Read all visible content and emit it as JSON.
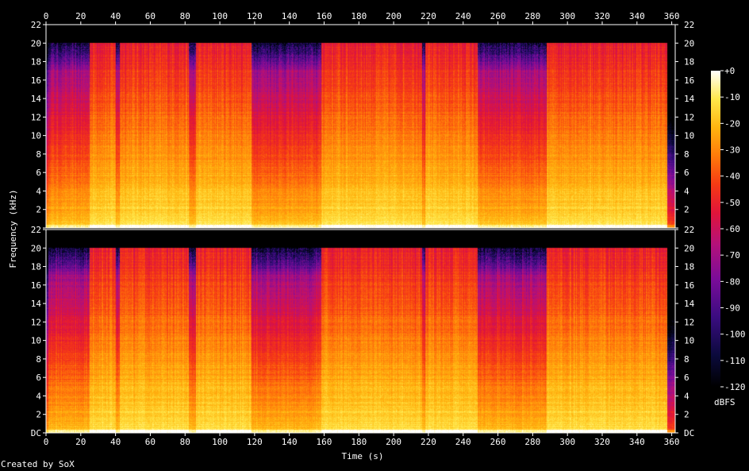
{
  "chart_data": {
    "type": "heatmap",
    "subtype": "spectrogram",
    "channels": 2,
    "xlabel": "Time (s)",
    "ylabel": "Frequency (kHz)",
    "x_ticks": [
      0,
      20,
      40,
      60,
      80,
      100,
      120,
      140,
      160,
      180,
      200,
      220,
      240,
      260,
      280,
      300,
      320,
      340,
      360
    ],
    "xlim": [
      0,
      362
    ],
    "y_ticks": [
      0,
      2,
      4,
      6,
      8,
      10,
      12,
      14,
      16,
      18,
      20,
      22
    ],
    "y_tick_labels_top_channel": [
      "",
      "2",
      "4",
      "6",
      "8",
      "10",
      "12",
      "14",
      "16",
      "18",
      "20",
      "22"
    ],
    "y_tick_labels_bottom_channel": [
      "DC",
      "2",
      "4",
      "6",
      "8",
      "10",
      "12",
      "14",
      "16",
      "18",
      "20",
      "22"
    ],
    "ylim_khz": [
      0,
      22
    ],
    "content_cutoff_khz": 20,
    "loud_segments_s": [
      [
        25,
        40
      ],
      [
        42,
        82
      ],
      [
        86,
        118
      ],
      [
        158,
        216
      ],
      [
        218,
        248
      ],
      [
        288,
        362
      ]
    ],
    "colorbar": {
      "label": "dBFS",
      "ticks": [
        "+0",
        "-10",
        "-20",
        "-30",
        "-40",
        "-50",
        "-60",
        "-70",
        "-80",
        "-90",
        "-100",
        "-110",
        "-120"
      ],
      "range_db": [
        -120,
        0
      ]
    },
    "palette": [
      "#000000",
      "#0b0a3c",
      "#3a0c80",
      "#7a0c99",
      "#b4117a",
      "#e0143a",
      "#f63a14",
      "#ff7a0a",
      "#ffb40f",
      "#ffe84a",
      "#ffffff"
    ]
  },
  "credit": "Created by SoX"
}
